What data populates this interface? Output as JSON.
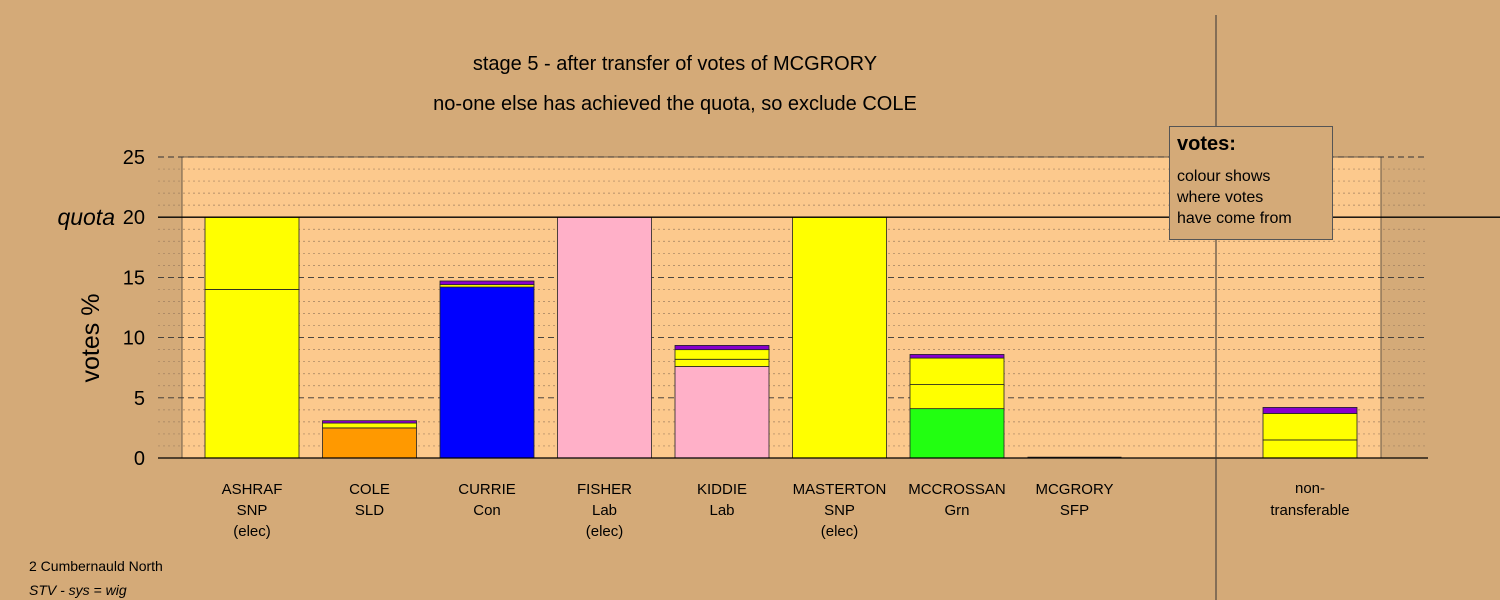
{
  "titles": {
    "line1": "stage 5 - after transfer of votes of MCGRORY",
    "line2": "no-one else has achieved the quota, so exclude COLE"
  },
  "legend": {
    "heading": "votes:",
    "lines": [
      "colour shows",
      "where votes",
      "have come from"
    ]
  },
  "footer": {
    "ward": "2 Cumbernauld North",
    "system": "STV - sys = wig"
  },
  "chart_data": {
    "type": "bar",
    "stacked": true,
    "ylabel": "votes %",
    "ylim": [
      0,
      25
    ],
    "yticks": [
      0,
      5,
      10,
      15,
      20,
      25
    ],
    "quota": {
      "value": 20,
      "label": "quota"
    },
    "grid": "dashed major, dotted minor",
    "colors": {
      "SNP": "#ffff00",
      "SLD": "#ff9900",
      "Con": "#0000ff",
      "Lab": "#ffb0c8",
      "Grn": "#22ff11",
      "SFP": "#8800cc"
    },
    "candidates": [
      {
        "name": "ASHRAF",
        "party": "SNP",
        "note": "(elec)",
        "segments": [
          {
            "from": "SNP",
            "value": 14.0
          },
          {
            "from": "SNP",
            "value": 6.0
          }
        ]
      },
      {
        "name": "COLE",
        "party": "SLD",
        "note": "",
        "segments": [
          {
            "from": "SLD",
            "value": 2.5
          },
          {
            "from": "SNP",
            "value": 0.4
          },
          {
            "from": "SFP",
            "value": 0.2
          }
        ]
      },
      {
        "name": "CURRIE",
        "party": "Con",
        "note": "",
        "segments": [
          {
            "from": "Con",
            "value": 14.2
          },
          {
            "from": "SNP",
            "value": 0.2
          },
          {
            "from": "SFP",
            "value": 0.3
          }
        ]
      },
      {
        "name": "FISHER",
        "party": "Lab",
        "note": "(elec)",
        "segments": [
          {
            "from": "Lab",
            "value": 20.0
          }
        ]
      },
      {
        "name": "KIDDIE",
        "party": "Lab",
        "note": "",
        "segments": [
          {
            "from": "Lab",
            "value": 7.6
          },
          {
            "from": "SNP",
            "value": 0.6
          },
          {
            "from": "SNP",
            "value": 0.8
          },
          {
            "from": "SFP",
            "value": 0.35
          }
        ]
      },
      {
        "name": "MASTERTON",
        "party": "SNP",
        "note": "(elec)",
        "segments": [
          {
            "from": "SNP",
            "value": 20.0
          }
        ]
      },
      {
        "name": "MCCROSSAN",
        "party": "Grn",
        "note": "",
        "segments": [
          {
            "from": "Grn",
            "value": 4.1
          },
          {
            "from": "SNP",
            "value": 2.0
          },
          {
            "from": "SNP",
            "value": 2.2
          },
          {
            "from": "SFP",
            "value": 0.3
          }
        ]
      },
      {
        "name": "MCGRORY",
        "party": "SFP",
        "note": "",
        "segments": []
      }
    ],
    "nontransferable": {
      "label_line1": "non-",
      "label_line2": "transferable",
      "segments": [
        {
          "from": "SNP",
          "value": 1.5
        },
        {
          "from": "SNP",
          "value": 2.2
        },
        {
          "from": "SFP",
          "value": 0.5
        }
      ]
    }
  }
}
